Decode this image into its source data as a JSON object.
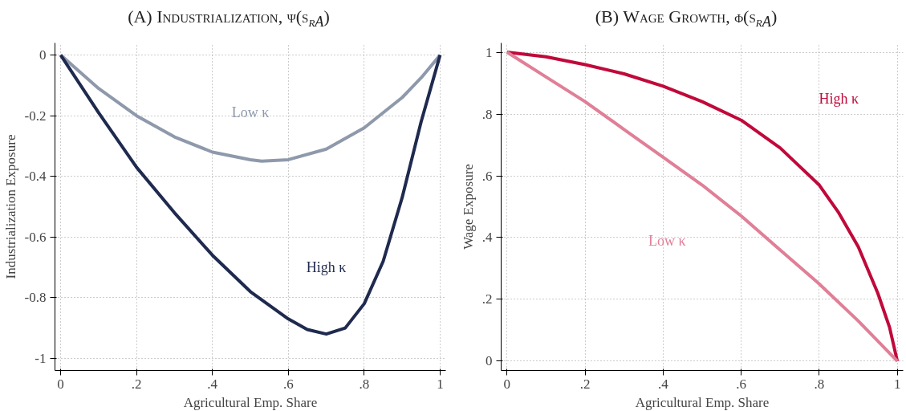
{
  "chart_data": [
    {
      "type": "line",
      "title": "(A) Industrialization, ψ(s$_{rA}$)",
      "xlabel": "Agricultural Emp. Share",
      "ylabel": "Industrialization Exposure",
      "xlim": [
        -0.015,
        1.015
      ],
      "ylim": [
        -1.04,
        0.04
      ],
      "xticks": [
        0,
        {
          "value": 0.2,
          "label": ".2"
        },
        {
          "value": 0.4,
          "label": ".4"
        },
        {
          "value": 0.6,
          "label": ".6"
        },
        {
          "value": 0.8,
          "label": ".8"
        },
        1
      ],
      "yticks": [
        -1,
        -0.8,
        -0.6,
        -0.4,
        -0.2,
        0
      ],
      "grid": true,
      "marker": "none",
      "line_style": "solid",
      "series": [
        {
          "name": "Low κ",
          "color": "#8e99ab",
          "x": [
            0,
            0.1,
            0.2,
            0.3,
            0.4,
            0.5,
            0.53,
            0.6,
            0.7,
            0.8,
            0.9,
            0.95,
            1
          ],
          "values": [
            0,
            -0.11,
            -0.2,
            -0.27,
            -0.32,
            -0.345,
            -0.35,
            -0.345,
            -0.31,
            -0.24,
            -0.14,
            -0.075,
            0
          ]
        },
        {
          "name": "High κ",
          "color": "#1f2a4f",
          "x": [
            0,
            0.1,
            0.2,
            0.3,
            0.4,
            0.5,
            0.6,
            0.65,
            0.7,
            0.75,
            0.8,
            0.85,
            0.9,
            0.95,
            1
          ],
          "values": [
            0,
            -0.19,
            -0.37,
            -0.52,
            -0.66,
            -0.78,
            -0.87,
            -0.905,
            -0.92,
            -0.9,
            -0.82,
            -0.68,
            -0.47,
            -0.22,
            0
          ]
        }
      ]
    },
    {
      "type": "line",
      "title": "(B) Wage Growth, ϕ(s$_{rA}$)",
      "xlabel": "Agricultural Emp. Share",
      "ylabel": "Wage Exposure",
      "xlim": [
        -0.015,
        1.015
      ],
      "ylim": [
        -0.03,
        1.03
      ],
      "xticks": [
        0,
        {
          "value": 0.2,
          "label": ".2"
        },
        {
          "value": 0.4,
          "label": ".4"
        },
        {
          "value": 0.6,
          "label": ".6"
        },
        {
          "value": 0.8,
          "label": ".8"
        },
        1
      ],
      "yticks": [
        0,
        {
          "value": 0.2,
          "label": ".2"
        },
        {
          "value": 0.4,
          "label": ".4"
        },
        {
          "value": 0.6,
          "label": ".6"
        },
        {
          "value": 0.8,
          "label": ".8"
        },
        1
      ],
      "grid": true,
      "marker": "none",
      "line_style": "solid",
      "series": [
        {
          "name": "High κ",
          "color": "#c0093a",
          "x": [
            0,
            0.1,
            0.2,
            0.3,
            0.4,
            0.5,
            0.6,
            0.7,
            0.8,
            0.85,
            0.9,
            0.95,
            0.98,
            1
          ],
          "values": [
            1,
            0.985,
            0.96,
            0.93,
            0.89,
            0.84,
            0.78,
            0.69,
            0.57,
            0.48,
            0.37,
            0.22,
            0.11,
            0
          ]
        },
        {
          "name": "Low κ",
          "color": "#e07f97",
          "x": [
            0,
            0.1,
            0.2,
            0.3,
            0.4,
            0.5,
            0.6,
            0.7,
            0.8,
            0.9,
            1
          ],
          "values": [
            1,
            0.92,
            0.84,
            0.75,
            0.66,
            0.57,
            0.47,
            0.36,
            0.25,
            0.13,
            0
          ]
        }
      ]
    }
  ]
}
